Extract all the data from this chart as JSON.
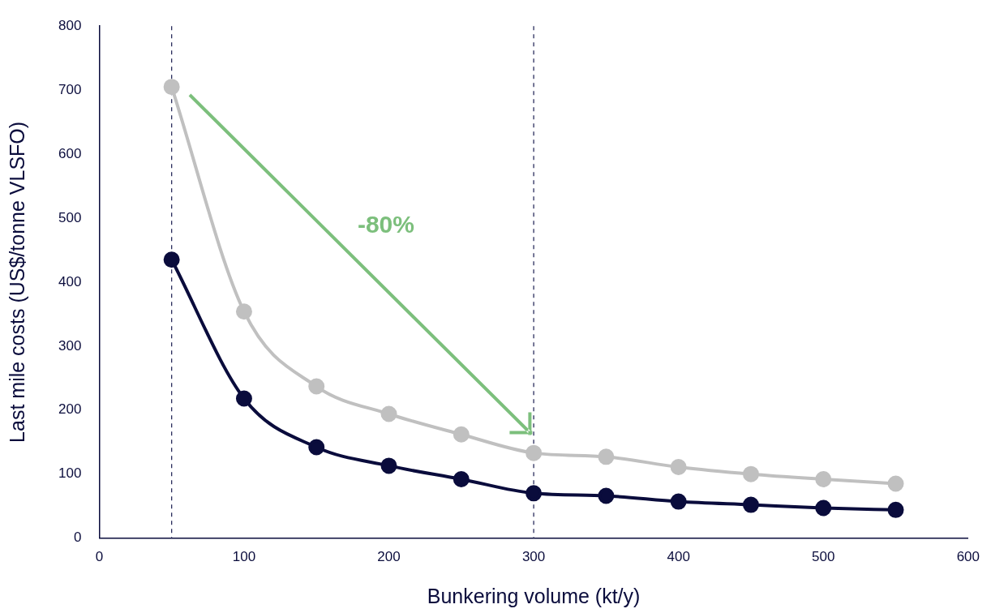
{
  "chart_data": {
    "type": "line",
    "xlabel": "Bunkering volume (kt/y)",
    "ylabel": "Last mile costs (US$/tonne VLSFO)",
    "x": [
      50,
      100,
      150,
      200,
      250,
      300,
      350,
      400,
      450,
      500,
      550
    ],
    "series": [
      {
        "color": "#c0c0c0",
        "values": [
          705,
          354,
          237,
          194,
          162,
          133,
          127,
          111,
          100,
          92,
          85
        ]
      },
      {
        "color": "#0a0c3c",
        "values": [
          435,
          218,
          142,
          113,
          92,
          70,
          66,
          57,
          52,
          47,
          44
        ]
      }
    ],
    "xlim": [
      0,
      600
    ],
    "xticks": [
      0,
      100,
      200,
      300,
      400,
      500,
      600
    ],
    "ylim": [
      0,
      800
    ],
    "yticks": [
      0,
      100,
      200,
      300,
      400,
      500,
      600,
      700,
      800
    ],
    "ref_lines": [
      {
        "axis": "x",
        "value": 50,
        "color": "#2a2d5c",
        "line_style": "dashed"
      },
      {
        "axis": "x",
        "value": 300,
        "color": "#2a2d5c",
        "line_style": "dashed"
      }
    ],
    "annotations": [
      "-80%"
    ],
    "marker": "circle",
    "grid": false,
    "legend": false
  }
}
